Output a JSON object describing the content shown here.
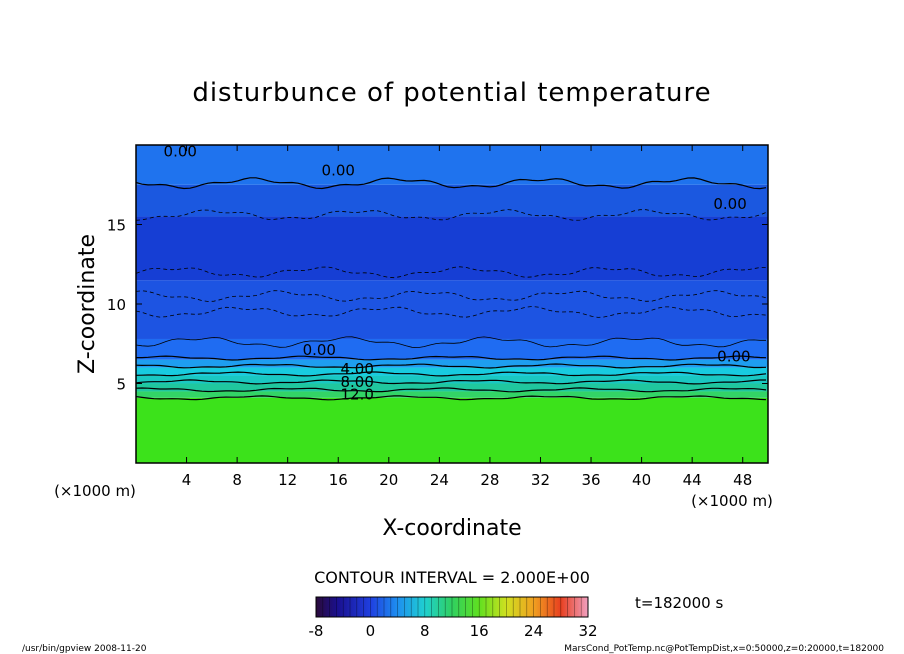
{
  "chart_data": {
    "type": "heatmap",
    "title": "disturbunce of potential temperature",
    "xlabel": "X-coordinate",
    "ylabel": "Z-coordinate",
    "x_unit": "(×1000 m)",
    "x_unit_right": "(×1000 m)",
    "xlim": [
      0,
      50
    ],
    "ylim": [
      0,
      20
    ],
    "x_ticks": [
      4,
      8,
      12,
      16,
      20,
      24,
      28,
      32,
      36,
      40,
      44,
      48
    ],
    "y_ticks": [
      5,
      10,
      15
    ],
    "grid": false,
    "bands": [
      {
        "z_bottom": 0,
        "z_top": 4.1,
        "value": 15,
        "color": "#3ce21b"
      },
      {
        "z_bottom": 4.1,
        "z_top": 4.5,
        "value": 13,
        "color": "#33d466"
      },
      {
        "z_bottom": 4.5,
        "z_top": 5.0,
        "value": 11,
        "color": "#20c79e"
      },
      {
        "z_bottom": 5.0,
        "z_top": 5.5,
        "value": 9,
        "color": "#1ac8c2"
      },
      {
        "z_bottom": 5.5,
        "z_top": 6.0,
        "value": 7,
        "color": "#18cbe0"
      },
      {
        "z_bottom": 6.0,
        "z_top": 6.5,
        "value": 4,
        "color": "#1e9ef0"
      },
      {
        "z_bottom": 6.5,
        "z_top": 7.8,
        "value": 1,
        "color": "#1f6cf2"
      },
      {
        "z_bottom": 7.8,
        "z_top": 11.5,
        "value": -1,
        "color": "#1d54e2"
      },
      {
        "z_bottom": 11.5,
        "z_top": 15.5,
        "value": -2,
        "color": "#163ed4"
      },
      {
        "z_bottom": 15.5,
        "z_top": 17.5,
        "value": -1,
        "color": "#1b58e0"
      },
      {
        "z_bottom": 17.5,
        "z_top": 20,
        "value": 0,
        "color": "#1f73ee"
      }
    ],
    "contour_labels": [
      {
        "text": "0.00",
        "x": 3.5,
        "z": 19.6
      },
      {
        "text": "0.00",
        "x": 16,
        "z": 18.4
      },
      {
        "text": "0.00",
        "x": 47,
        "z": 16.3
      },
      {
        "text": "0.00",
        "x": 14.5,
        "z": 7.1
      },
      {
        "text": "0.00",
        "x": 47.3,
        "z": 6.7
      },
      {
        "text": "4.00",
        "x": 17.5,
        "z": 5.9
      },
      {
        "text": "8.00",
        "x": 17.5,
        "z": 5.1
      },
      {
        "text": "12.0",
        "x": 17.5,
        "z": 4.3
      }
    ],
    "contour_lines": [
      {
        "z": 17.6
      },
      {
        "z": 15.6
      },
      {
        "z": 12.0
      },
      {
        "z": 10.5
      },
      {
        "z": 9.5
      },
      {
        "z": 7.6
      },
      {
        "z": 6.6
      },
      {
        "z": 6.1
      },
      {
        "z": 5.6
      },
      {
        "z": 5.1
      },
      {
        "z": 4.6
      },
      {
        "z": 4.1
      }
    ]
  },
  "contour_interval": "CONTOUR INTERVAL = 2.000E+00",
  "time_label": "t=182000 s",
  "colorbar": {
    "min": -8,
    "max": 32,
    "tick_labels": [
      "-8",
      "0",
      "8",
      "16",
      "24",
      "32"
    ],
    "tick_values": [
      -8,
      0,
      8,
      16,
      24,
      32
    ]
  },
  "footer_left": "/usr/bin/gpview   2008-11-20",
  "footer_right": "MarsCond_PotTemp.nc@PotTempDist,x=0:50000,z=0:20000,t=182000",
  "colors": {
    "frame": "#000000",
    "background": "#ffffff"
  }
}
